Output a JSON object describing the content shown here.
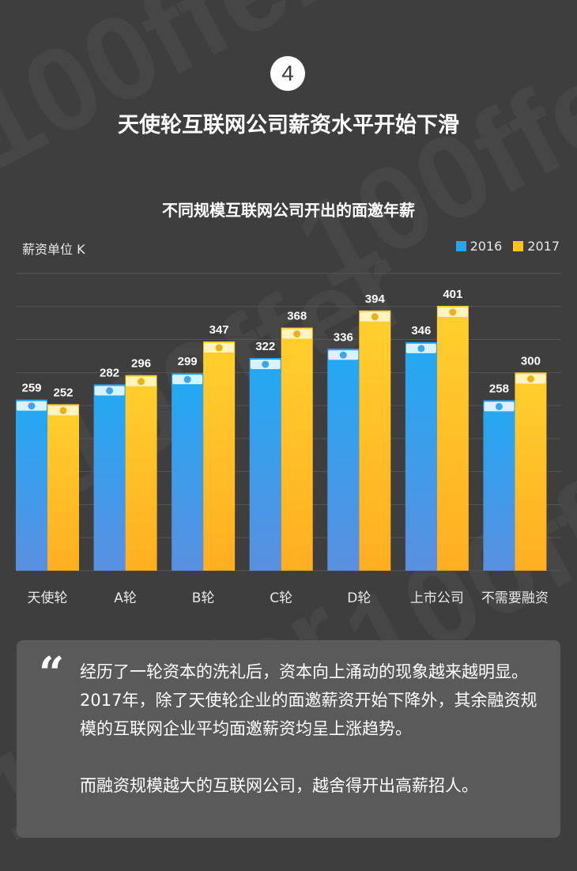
{
  "badge": {
    "number": "4"
  },
  "header": {
    "title": "天使轮互联网公司薪资水平开始下滑"
  },
  "colors": {
    "series_2016": "#2aa2ee",
    "series_2017": "#ffc21f",
    "background": "#3e3e3e",
    "note_bg": "#5a5a5a"
  },
  "chart_data": {
    "type": "bar",
    "title": "不同规模互联网公司开出的面邀年薪",
    "ylabel": "薪资单位 K",
    "xlabel": "",
    "categories": [
      "天使轮",
      "A轮",
      "B轮",
      "C轮",
      "D轮",
      "上市公司",
      "不需要融资"
    ],
    "series": [
      {
        "name": "2016",
        "values": [
          259,
          282,
          299,
          322,
          336,
          346,
          258
        ]
      },
      {
        "name": "2017",
        "values": [
          252,
          296,
          347,
          368,
          394,
          401,
          300
        ]
      }
    ],
    "ylim": [
      0,
      450
    ],
    "grid": true,
    "legend_position": "top-right"
  },
  "note": {
    "quote_icon": "quote-icon",
    "paragraph1": "经历了一轮资本的洗礼后，资本向上涌动的现象越来越明显。2017年，除了天使轮企业的面邀薪资开始下降外，其余融资规模的互联网企业平均面邀薪资均呈上涨趋势。",
    "paragraph2": "而融资规模越大的互联网公司，越舍得开出高薪招人。"
  }
}
